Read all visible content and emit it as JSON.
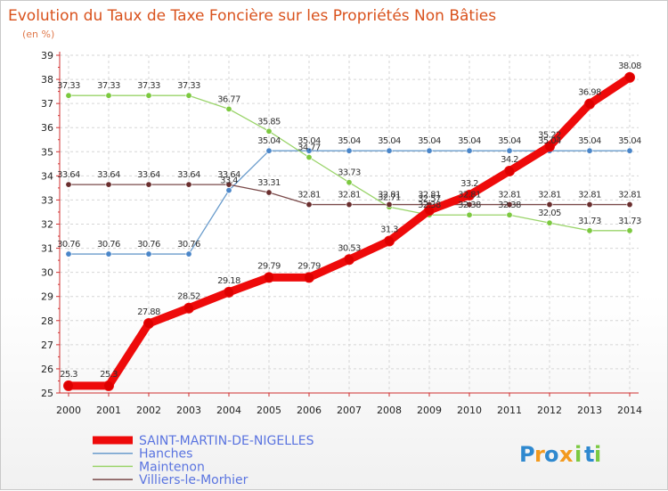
{
  "chart_data": {
    "type": "line",
    "title": "Evolution du Taux de Taxe Foncière sur les Propriétés Non Bâties",
    "subtitle": "(en %)",
    "xlabel": "",
    "ylabel": "",
    "ylim": [
      25,
      39
    ],
    "yticks": [
      "25",
      "26",
      "27",
      "28",
      "29",
      "30",
      "31",
      "32",
      "33",
      "34",
      "35",
      "36",
      "37",
      "38",
      "39"
    ],
    "categories": [
      "2000",
      "2001",
      "2002",
      "2003",
      "2004",
      "2005",
      "2006",
      "2007",
      "2008",
      "2009",
      "2010",
      "2011",
      "2012",
      "2013",
      "2014"
    ],
    "grid": true,
    "legend_position": "bottom-left",
    "series": [
      {
        "name": "Hanches",
        "color": "#6a9ccc",
        "marker": "#4a86c9",
        "values": [
          30.76,
          30.76,
          30.76,
          30.76,
          33.4,
          35.04,
          35.04,
          35.04,
          35.04,
          35.04,
          35.04,
          35.04,
          35.04,
          35.04,
          35.04
        ],
        "labels": [
          "30.76",
          "30.76",
          "30.76",
          "30.76",
          "33.4",
          "35.04",
          "35.04",
          "35.04",
          "35.04",
          "35.04",
          "35.04",
          "35.04",
          "35.04",
          "35.04",
          "35.04"
        ]
      },
      {
        "name": "Maintenon",
        "color": "#9ad46a",
        "marker": "#7cc93f",
        "values": [
          37.33,
          37.33,
          37.33,
          37.33,
          36.77,
          35.85,
          34.77,
          33.73,
          32.71,
          32.38,
          32.38,
          32.38,
          32.05,
          31.73,
          31.73
        ],
        "labels": [
          "37.33",
          "37.33",
          "37.33",
          "37.33",
          "36.77",
          "35.85",
          "34.77",
          "33.73",
          "32.71",
          "32.38",
          "32.38",
          "32.38",
          "32.05",
          "31.73",
          "31.73"
        ]
      },
      {
        "name": "Villiers-le-Morhier",
        "color": "#7a4a4a",
        "marker": "#6a2e2e",
        "values": [
          33.64,
          33.64,
          33.64,
          33.64,
          33.64,
          33.31,
          32.81,
          32.81,
          32.81,
          32.81,
          32.81,
          32.81,
          32.81,
          32.81,
          32.81
        ],
        "labels": [
          "33.64",
          "33.64",
          "33.64",
          "33.64",
          "33.64",
          "33.31",
          "32.81",
          "32.81",
          "32.81",
          "32.81",
          "32.81",
          "32.81",
          "32.81",
          "32.81",
          "32.81"
        ]
      },
      {
        "name": "SAINT-MARTIN-DE-NIGELLES",
        "color": "#ee0a0a",
        "marker": "#dd0000",
        "highlight": true,
        "values": [
          25.3,
          25.3,
          27.88,
          28.52,
          29.18,
          29.79,
          29.79,
          30.53,
          31.3,
          32.57,
          33.2,
          34.2,
          35.22,
          36.98,
          38.08
        ],
        "labels": [
          "25.3",
          "25.3",
          "27.88",
          "28.52",
          "29.18",
          "29.79",
          "29.79",
          "30.53",
          "31.3",
          "32.57",
          "33.2",
          "34.2",
          "35.22",
          "36.98",
          "38.08"
        ]
      }
    ],
    "legend": [
      "SAINT-MARTIN-DE-NIGELLES",
      "Hanches",
      "Maintenon",
      "Villiers-le-Morhier"
    ]
  },
  "logo": {
    "text": "Proxiti",
    "letters": [
      {
        "ch": "P",
        "color": "#2f89cf"
      },
      {
        "ch": "r",
        "color": "#f39a1e"
      },
      {
        "ch": "o",
        "color": "#2f89cf"
      },
      {
        "ch": "x",
        "color": "#f39a1e"
      },
      {
        "ch": "i",
        "color": "#7cc943"
      },
      {
        "ch": "t",
        "color": "#2f89cf"
      },
      {
        "ch": "i",
        "color": "#7cc943"
      }
    ]
  }
}
